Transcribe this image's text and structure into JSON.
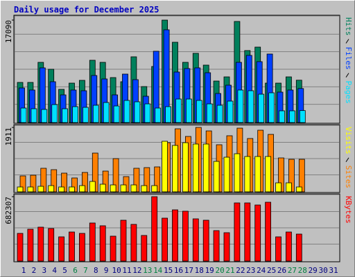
{
  "title": "Daily usage for December 2025",
  "chart_data": [
    {
      "type": "bar",
      "ylim": [
        0,
        17671
      ],
      "yticks": [
        17090
      ],
      "series": [
        {
          "name": "Hits",
          "color": "#00805c",
          "values": [
            6627,
            6627,
            9998,
            8836,
            5464,
            6510,
            6976,
            10347,
            9998,
            7440,
            6743,
            10928,
            5929,
            9301,
            17090,
            13370,
            9998,
            11510,
            9533,
            6859,
            7557,
            16860,
            11975,
            12556,
            6510,
            6510,
            7557,
            7000,
            0,
            0,
            0
          ]
        },
        {
          "name": "Files",
          "color": "#0040ff",
          "values": [
            5697,
            5348,
            9068,
            6743,
            4534,
            5348,
            5232,
            7789,
            7208,
            4534,
            8022,
            7092,
            4302,
            11858,
            15462,
            8371,
            8952,
            9068,
            8254,
            4767,
            6162,
            9998,
            11161,
            10114,
            11393,
            4999,
            5348,
            5600,
            0,
            0,
            0
          ]
        },
        {
          "name": "Pages",
          "color": "#00e0ff",
          "values": [
            2325,
            2209,
            2093,
            2906,
            2209,
            2558,
            2441,
            2790,
            3255,
            2674,
            3604,
            3371,
            3023,
            2325,
            2558,
            3836,
            3836,
            3604,
            3023,
            2790,
            3488,
            5348,
            5232,
            4650,
            4883,
            1860,
            1860,
            1900,
            0,
            0,
            0
          ]
        }
      ]
    },
    {
      "type": "bar",
      "ylim": [
        0,
        1953
      ],
      "yticks": [
        1911
      ],
      "series": [
        {
          "name": "Visits",
          "color": "#ffff00",
          "values": [
            125,
            125,
            145,
            166,
            125,
            125,
            166,
            291,
            208,
            187,
            187,
            187,
            166,
            166,
            1496,
            1371,
            1454,
            1413,
            1413,
            893,
            1018,
            1122,
            1039,
            1039,
            1039,
            249,
            249,
            125,
            0,
            0,
            0
          ]
        },
        {
          "name": "Sites",
          "color": "#ff8000",
          "values": [
            457,
            478,
            686,
            644,
            540,
            395,
            561,
            1142,
            602,
            976,
            436,
            686,
            706,
            727,
            1454,
            1870,
            1641,
            1911,
            1807,
            1392,
            1662,
            1890,
            1579,
            1828,
            1703,
            997,
            955,
            955,
            0,
            0,
            0
          ]
        }
      ]
    },
    {
      "type": "bar",
      "ylim": [
        0,
        697140
      ],
      "yticks": [
        682307
      ],
      "series": [
        {
          "name": "KBytes",
          "color": "#ff0000",
          "values": [
            289239,
            333732,
            355986,
            341153,
            252157,
            304069,
            289239,
            400483,
            370817,
            259575,
            430150,
            385650,
            266991,
            682307,
            452398,
            541392,
            526562,
            444983,
            430150,
            318904,
            296656,
            615563,
            615563,
            593317,
            622978,
            252157,
            304069,
            281822,
            0,
            0,
            0
          ]
        }
      ],
      "categories": [
        "1",
        "2",
        "3",
        "4",
        "5",
        "6",
        "7",
        "8",
        "9",
        "10",
        "11",
        "12",
        "13",
        "14",
        "15",
        "16",
        "17",
        "18",
        "19",
        "20",
        "21",
        "22",
        "23",
        "24",
        "25",
        "26",
        "27",
        "28",
        "29",
        "30",
        "31"
      ],
      "category_colors": [
        "#000080",
        "#000080",
        "#000080",
        "#000080",
        "#000080",
        "#008040",
        "#008040",
        "#000080",
        "#000080",
        "#000080",
        "#000080",
        "#000080",
        "#008040",
        "#008040",
        "#000080",
        "#000080",
        "#000080",
        "#000080",
        "#000080",
        "#008040",
        "#008040",
        "#000080",
        "#000080",
        "#000080",
        "#000080",
        "#000080",
        "#008040",
        "#008040",
        "#000080",
        "#000080",
        "#000080"
      ]
    }
  ]
}
